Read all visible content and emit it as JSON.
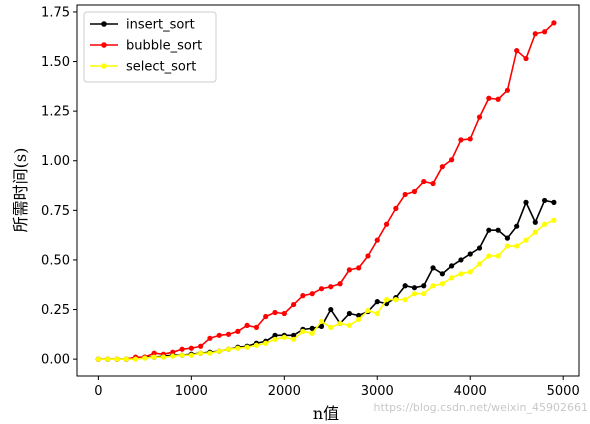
{
  "chart_data": {
    "type": "line",
    "xlabel": "n值",
    "ylabel": "所需时间(s)",
    "xlim": [
      -230,
      5170
    ],
    "ylim": [
      -0.085,
      1.785
    ],
    "xticks": [
      0,
      1000,
      2000,
      3000,
      4000,
      5000
    ],
    "yticks": [
      0.0,
      0.25,
      0.5,
      0.75,
      1.0,
      1.25,
      1.5,
      1.75
    ],
    "ytick_labels": [
      "0.00",
      "0.25",
      "0.50",
      "0.75",
      "1.00",
      "1.25",
      "1.50",
      "1.75"
    ],
    "legend_position": "top-left",
    "x": [
      0,
      100,
      200,
      300,
      400,
      500,
      600,
      700,
      800,
      900,
      1000,
      1100,
      1200,
      1300,
      1400,
      1500,
      1600,
      1700,
      1800,
      1900,
      2000,
      2100,
      2200,
      2300,
      2400,
      2500,
      2600,
      2700,
      2800,
      2900,
      3000,
      3100,
      3200,
      3300,
      3400,
      3500,
      3600,
      3700,
      3800,
      3900,
      4000,
      4100,
      4200,
      4300,
      4400,
      4500,
      4600,
      4700,
      4800,
      4900
    ],
    "series": [
      {
        "name": "insert_sort",
        "color": "#000000",
        "values": [
          0.0,
          0.0,
          0.0,
          0.0,
          0.005,
          0.01,
          0.01,
          0.015,
          0.02,
          0.02,
          0.025,
          0.03,
          0.035,
          0.04,
          0.05,
          0.06,
          0.065,
          0.08,
          0.09,
          0.12,
          0.12,
          0.12,
          0.15,
          0.155,
          0.165,
          0.25,
          0.18,
          0.23,
          0.22,
          0.24,
          0.29,
          0.28,
          0.31,
          0.37,
          0.36,
          0.37,
          0.46,
          0.43,
          0.47,
          0.5,
          0.53,
          0.56,
          0.65,
          0.65,
          0.61,
          0.67,
          0.79,
          0.69,
          0.8,
          0.79
        ]
      },
      {
        "name": "bubble_sort",
        "color": "#ff0000",
        "values": [
          0.0,
          0.0,
          0.0,
          0.0,
          0.01,
          0.01,
          0.03,
          0.025,
          0.035,
          0.05,
          0.055,
          0.065,
          0.105,
          0.12,
          0.125,
          0.14,
          0.17,
          0.16,
          0.215,
          0.235,
          0.23,
          0.275,
          0.32,
          0.33,
          0.355,
          0.365,
          0.38,
          0.45,
          0.46,
          0.52,
          0.6,
          0.68,
          0.76,
          0.83,
          0.845,
          0.895,
          0.885,
          0.97,
          1.005,
          1.105,
          1.11,
          1.22,
          1.315,
          1.31,
          1.355,
          1.555,
          1.515,
          1.64,
          1.65,
          1.695
        ]
      },
      {
        "name": "select_sort",
        "color": "#ffff00",
        "values": [
          0.0,
          0.0,
          0.0,
          0.0,
          0.0,
          0.005,
          0.01,
          0.01,
          0.015,
          0.02,
          0.02,
          0.03,
          0.03,
          0.04,
          0.05,
          0.055,
          0.06,
          0.07,
          0.08,
          0.1,
          0.11,
          0.1,
          0.14,
          0.13,
          0.19,
          0.16,
          0.18,
          0.17,
          0.2,
          0.245,
          0.23,
          0.3,
          0.3,
          0.3,
          0.33,
          0.33,
          0.37,
          0.38,
          0.41,
          0.43,
          0.44,
          0.48,
          0.52,
          0.52,
          0.57,
          0.57,
          0.6,
          0.64,
          0.68,
          0.7
        ]
      }
    ]
  },
  "watermark": "https://blog.csdn.net/weixin_45902661"
}
